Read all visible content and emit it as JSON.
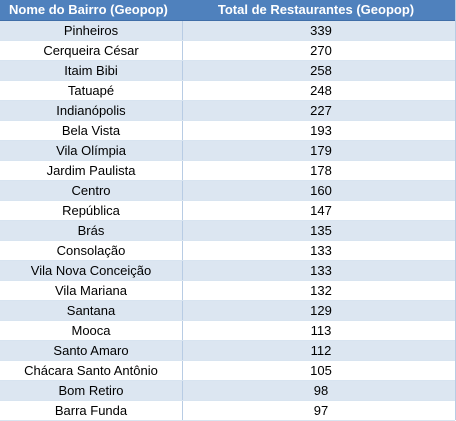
{
  "table": {
    "headers": [
      "Nome do Bairro (Geopop)",
      "Total de Restaurantes (Geopop)"
    ],
    "rows": [
      [
        "Pinheiros",
        "339"
      ],
      [
        "Cerqueira César",
        "270"
      ],
      [
        "Itaim Bibi",
        "258"
      ],
      [
        "Tatuapé",
        "248"
      ],
      [
        "Indianópolis",
        "227"
      ],
      [
        "Bela Vista",
        "193"
      ],
      [
        "Vila Olímpia",
        "179"
      ],
      [
        "Jardim Paulista",
        "178"
      ],
      [
        "Centro",
        "160"
      ],
      [
        "República",
        "147"
      ],
      [
        "Brás",
        "135"
      ],
      [
        "Consolação",
        "133"
      ],
      [
        "Vila Nova Conceição",
        "133"
      ],
      [
        "Vila Mariana",
        "132"
      ],
      [
        "Santana",
        "129"
      ],
      [
        "Mooca",
        "113"
      ],
      [
        "Santo Amaro",
        "112"
      ],
      [
        "Chácara Santo Antônio",
        "105"
      ],
      [
        "Bom Retiro",
        "98"
      ],
      [
        "Barra Funda",
        "97"
      ]
    ]
  },
  "colors": {
    "header_bg": "#4f81bd",
    "header_text": "#ffffff",
    "band_bg": "#dce6f1",
    "plain_bg": "#ffffff"
  }
}
